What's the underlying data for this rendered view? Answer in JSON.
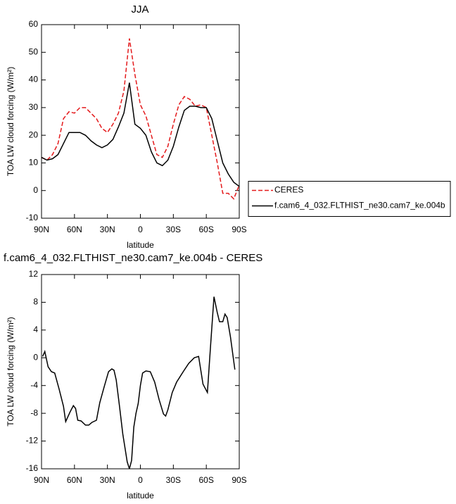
{
  "chart_data": [
    {
      "type": "line",
      "title": "JJA",
      "xlabel": "latitude",
      "ylabel": "TOA LW cloud forcing (W/m²)",
      "x": [
        90,
        85,
        80,
        75,
        70,
        65,
        60,
        55,
        50,
        45,
        40,
        35,
        30,
        25,
        20,
        15,
        10,
        5,
        0,
        -5,
        -10,
        -15,
        -20,
        -25,
        -30,
        -35,
        -40,
        -45,
        -50,
        -55,
        -60,
        -65,
        -70,
        -75,
        -80,
        -85,
        -90
      ],
      "series": [
        {
          "name": "CERES",
          "color": "#e41a1c",
          "line_style": "dashed",
          "values": [
            12,
            11,
            13,
            17,
            26,
            28.5,
            28,
            30,
            30,
            28,
            26,
            22.5,
            21,
            24,
            28,
            36,
            55,
            42,
            31,
            27,
            20,
            13,
            12,
            16,
            24,
            31,
            34,
            33,
            30.5,
            31,
            30,
            20,
            10,
            -1,
            -1,
            -3,
            2
          ]
        },
        {
          "name": "f.cam6_4_032.FLTHIST_ne30.cam7_ke.004b",
          "color": "#000000",
          "line_style": "solid",
          "values": [
            12,
            11,
            11.5,
            13,
            17,
            21,
            21,
            21,
            20,
            18,
            16.5,
            15.5,
            16.5,
            18.5,
            23,
            28,
            39,
            24,
            22.5,
            20,
            14,
            10,
            9,
            11,
            16,
            23,
            29,
            30.5,
            30.5,
            30,
            30,
            26,
            18,
            10,
            6,
            3,
            1.5
          ]
        }
      ],
      "xlim": [
        90,
        -90
      ],
      "xticks": [
        {
          "value": 90,
          "label": "90N"
        },
        {
          "value": 60,
          "label": "60N"
        },
        {
          "value": 30,
          "label": "30N"
        },
        0,
        {
          "value": -30,
          "label": "30S"
        },
        {
          "value": -60,
          "label": "60S"
        },
        {
          "value": -90,
          "label": "90S"
        }
      ],
      "ylim": [
        -10,
        60
      ],
      "yticks": [
        -10,
        0,
        10,
        20,
        30,
        40,
        50,
        60
      ],
      "legend": "right"
    },
    {
      "type": "line",
      "title": "f.cam6_4_032.FLTHIST_ne30.cam7_ke.004b - CERES",
      "xlabel": "latitude",
      "ylabel": "TOA LW cloud forcing (W/m²)",
      "x": [
        89,
        87,
        84,
        81,
        78,
        74,
        70,
        68,
        64,
        61,
        59,
        57,
        54,
        50,
        47,
        44,
        40,
        37,
        33,
        29,
        26,
        24,
        22,
        19,
        16,
        12,
        10,
        8,
        6,
        4,
        2,
        0,
        -2,
        -5,
        -9,
        -13,
        -17,
        -21,
        -23,
        -25,
        -29,
        -33,
        -39,
        -44,
        -49,
        -53,
        -57,
        -61,
        -64,
        -67,
        -70,
        -72,
        -75,
        -77,
        -79,
        -82,
        -86
      ],
      "series": [
        {
          "color": "#000000",
          "line_style": "solid",
          "values": [
            0.2,
            0.9,
            -1.3,
            -2,
            -2.2,
            -4.5,
            -7,
            -9.2,
            -7.8,
            -6.9,
            -7.3,
            -9,
            -9.1,
            -9.7,
            -9.7,
            -9.3,
            -9,
            -6.5,
            -4.2,
            -2,
            -1.6,
            -1.8,
            -3.2,
            -7,
            -11,
            -15,
            -16,
            -14.8,
            -10,
            -8,
            -6.6,
            -4,
            -2.2,
            -1.9,
            -2,
            -3.5,
            -6,
            -8.1,
            -8.4,
            -7.5,
            -5,
            -3.5,
            -2,
            -0.8,
            0,
            0.2,
            -3.8,
            -5,
            2,
            8.8,
            6.5,
            5.2,
            5.2,
            6.3,
            5.8,
            3,
            -1.7
          ]
        }
      ],
      "xlim": [
        90,
        -90
      ],
      "xticks": [
        {
          "value": 90,
          "label": "90N"
        },
        {
          "value": 60,
          "label": "60N"
        },
        {
          "value": 30,
          "label": "30N"
        },
        0,
        {
          "value": -30,
          "label": "30S"
        },
        {
          "value": -60,
          "label": "60S"
        },
        {
          "value": -90,
          "label": "90S"
        }
      ],
      "ylim": [
        -16,
        12
      ],
      "yticks": [
        -16,
        -12,
        -8,
        -4,
        0,
        4,
        8,
        12
      ]
    }
  ]
}
